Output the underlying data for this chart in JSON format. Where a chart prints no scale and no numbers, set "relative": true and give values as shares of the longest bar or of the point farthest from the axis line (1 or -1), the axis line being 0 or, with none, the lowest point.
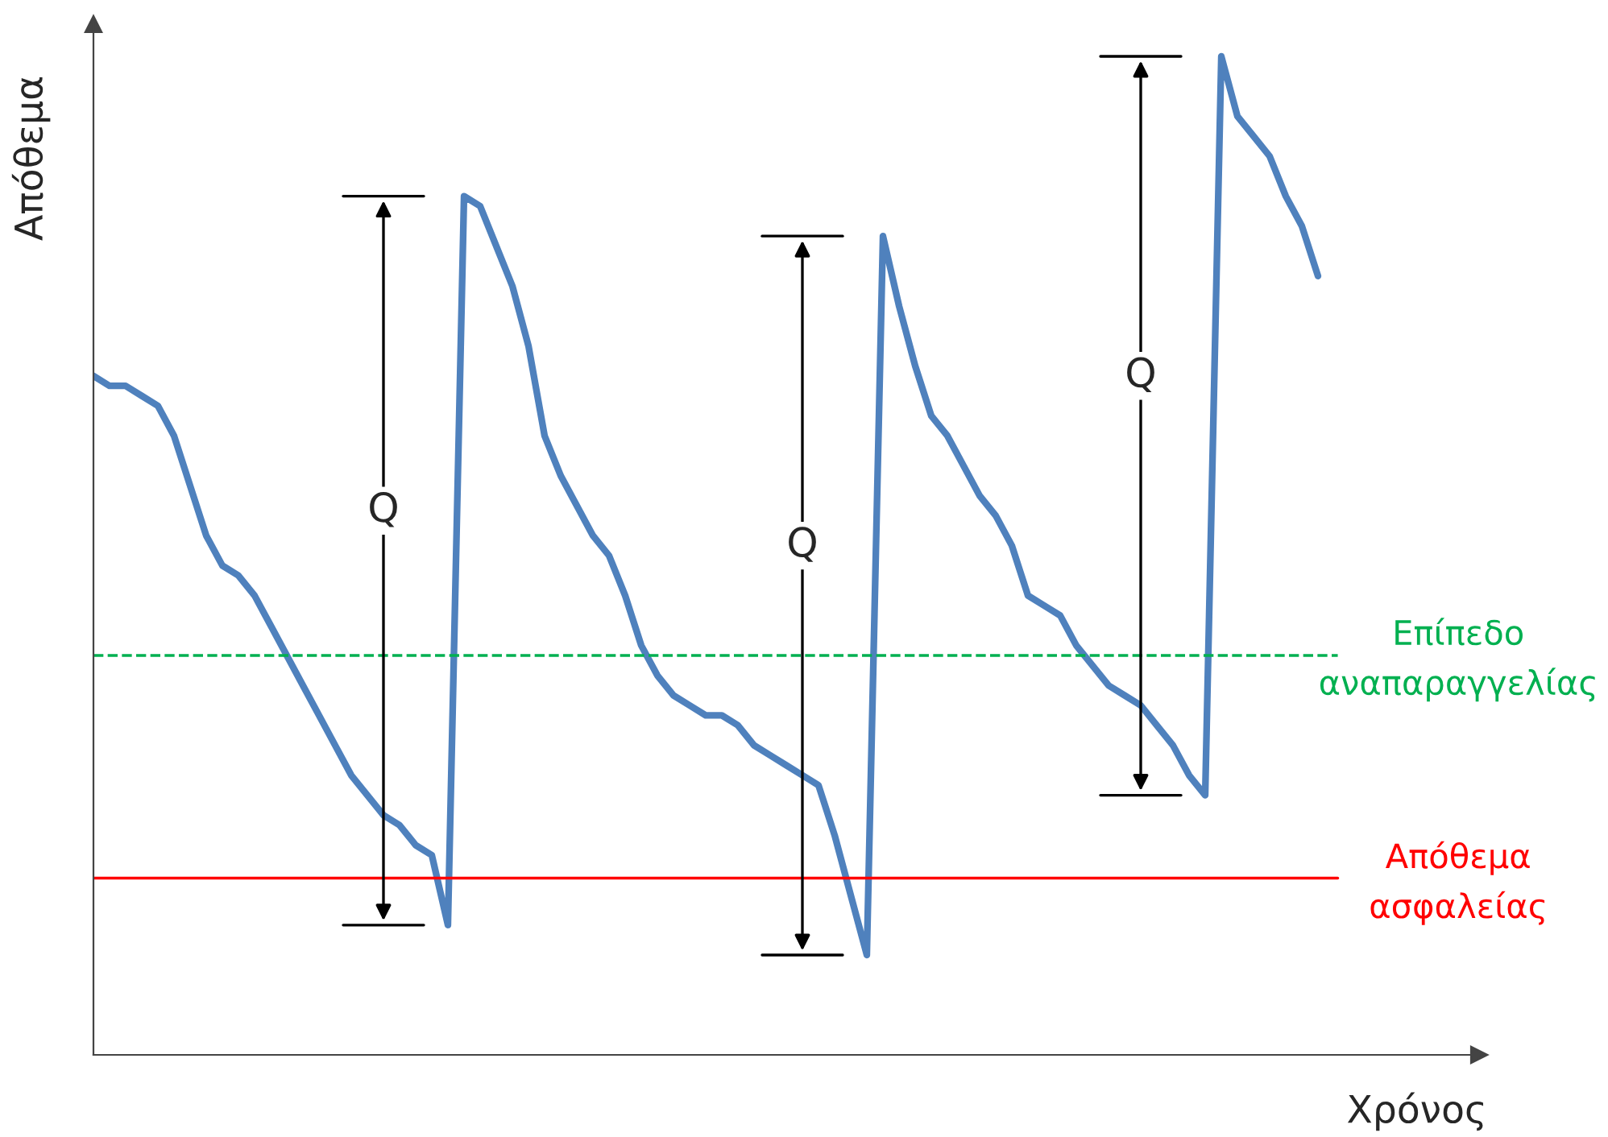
{
  "chart_data": {
    "type": "line",
    "relative": true,
    "xlabel": "Χρόνος",
    "ylabel": "Απόθεμα",
    "categories": [
      null,
      null,
      null,
      null,
      null,
      null,
      null,
      null,
      null,
      null,
      null,
      null,
      null,
      null,
      null,
      null,
      null,
      null,
      null,
      null,
      null,
      null,
      null,
      null,
      null,
      null,
      null,
      null,
      null,
      null,
      null,
      null,
      null,
      null,
      null,
      null,
      null,
      null,
      null,
      null,
      null,
      null,
      null,
      null,
      null,
      null,
      null,
      null,
      null,
      null,
      null,
      null,
      null,
      null,
      null,
      null,
      null,
      null,
      null,
      null,
      null,
      null,
      null,
      null,
      null,
      null,
      null,
      null,
      null,
      null,
      null,
      null,
      null,
      null,
      null,
      null,
      null
    ],
    "series": [
      {
        "color": "#4f81bd",
        "values": [
          0.68,
          0.67,
          0.67,
          0.66,
          0.65,
          0.62,
          0.57,
          0.52,
          0.49,
          0.48,
          0.46,
          0.43,
          0.4,
          0.37,
          0.34,
          0.31,
          0.28,
          0.26,
          0.24,
          0.23,
          0.21,
          0.2,
          0.13,
          0.86,
          0.85,
          0.81,
          0.77,
          0.71,
          0.62,
          0.58,
          0.55,
          0.52,
          0.5,
          0.46,
          0.41,
          0.38,
          0.36,
          0.35,
          0.34,
          0.34,
          0.33,
          0.31,
          0.3,
          0.29,
          0.28,
          0.27,
          0.22,
          0.16,
          0.1,
          0.82,
          0.75,
          0.69,
          0.64,
          0.62,
          0.59,
          0.56,
          0.54,
          0.51,
          0.46,
          0.45,
          0.44,
          0.41,
          0.39,
          0.37,
          0.36,
          0.35,
          0.33,
          0.31,
          0.28,
          0.26,
          1.0,
          0.94,
          0.92,
          0.9,
          0.86,
          0.83,
          0.78
        ]
      }
    ],
    "ref_lines": [
      {
        "axis": "y",
        "value": 0.4,
        "label": "Επίπεδο\nαναπαραγγελίας",
        "color": "#00b050",
        "line_style": "dashed"
      },
      {
        "axis": "y",
        "value": 0.177,
        "label": "Απόθεμα\nασφαλείας",
        "color": "#ff0000",
        "line_style": "solid"
      }
    ],
    "annotations": [
      "Q",
      "Q",
      "Q"
    ],
    "legend": false,
    "marker": "none",
    "line_style": "solid"
  }
}
